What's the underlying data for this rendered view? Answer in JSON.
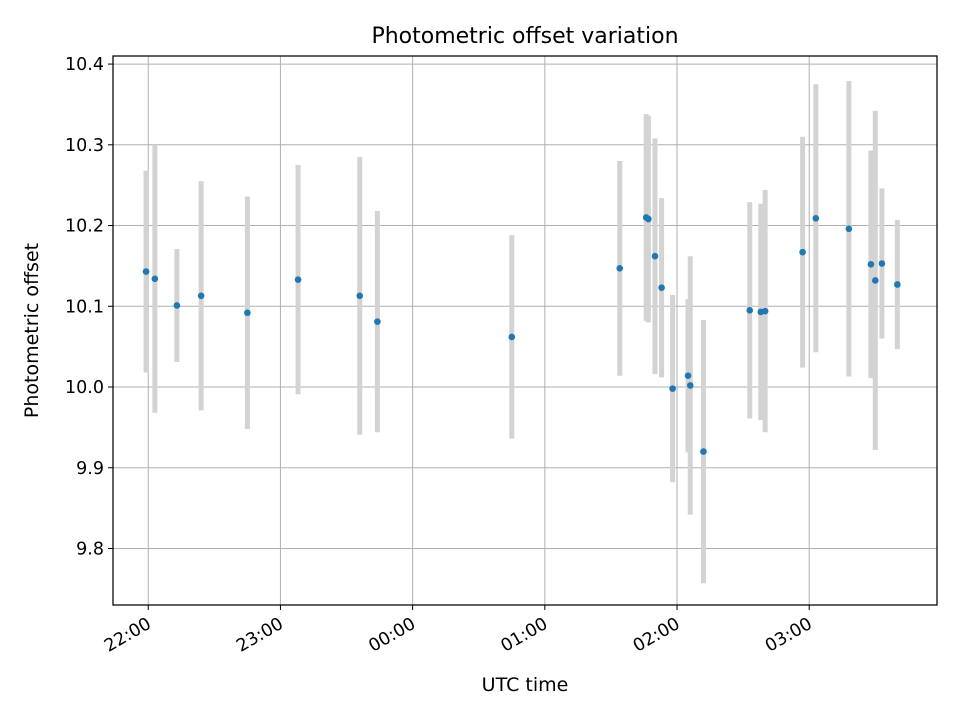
{
  "chart_data": {
    "type": "scatter",
    "title": "Photometric offset variation",
    "xlabel": "UTC time",
    "ylabel": "Photometric offset",
    "x_unit": "UTC",
    "x_range": [
      "21:44",
      "03:58"
    ],
    "ylim": [
      9.73,
      10.41
    ],
    "x_ticks": [
      "22:00",
      "23:00",
      "00:00",
      "01:00",
      "02:00",
      "03:00"
    ],
    "y_ticks": [
      9.8,
      9.9,
      10.0,
      10.1,
      10.2,
      10.3,
      10.4
    ],
    "y_tick_labels": [
      "9.8",
      "9.9",
      "10.0",
      "10.1",
      "10.2",
      "10.3",
      "10.4"
    ],
    "grid": true,
    "legend": "none",
    "colors": {
      "point": "#1f77b4",
      "errorbar": "#d3d3d3",
      "grid": "#b0b0b0"
    },
    "points": [
      {
        "t": "21:59",
        "y": 10.143,
        "err": 0.125
      },
      {
        "t": "22:03",
        "y": 10.134,
        "err": 0.166
      },
      {
        "t": "22:13",
        "y": 10.101,
        "err": 0.07
      },
      {
        "t": "22:24",
        "y": 10.113,
        "err": 0.142
      },
      {
        "t": "22:45",
        "y": 10.092,
        "err": 0.144
      },
      {
        "t": "23:08",
        "y": 10.133,
        "err": 0.142
      },
      {
        "t": "23:36",
        "y": 10.113,
        "err": 0.172
      },
      {
        "t": "23:44",
        "y": 10.081,
        "err": 0.137
      },
      {
        "t": "00:45",
        "y": 10.062,
        "err": 0.126
      },
      {
        "t": "01:34",
        "y": 10.147,
        "err": 0.133
      },
      {
        "t": "01:46",
        "y": 10.21,
        "err": 0.128
      },
      {
        "t": "01:47",
        "y": 10.208,
        "err": 0.128
      },
      {
        "t": "01:50",
        "y": 10.162,
        "err": 0.146
      },
      {
        "t": "01:53",
        "y": 10.123,
        "err": 0.111
      },
      {
        "t": "01:58",
        "y": 9.998,
        "err": 0.116
      },
      {
        "t": "02:05",
        "y": 10.014,
        "err": 0.095
      },
      {
        "t": "02:06",
        "y": 10.002,
        "err": 0.16
      },
      {
        "t": "02:12",
        "y": 9.92,
        "err": 0.163
      },
      {
        "t": "02:33",
        "y": 10.095,
        "err": 0.134
      },
      {
        "t": "02:38",
        "y": 10.093,
        "err": 0.134
      },
      {
        "t": "02:40",
        "y": 10.094,
        "err": 0.15
      },
      {
        "t": "02:57",
        "y": 10.167,
        "err": 0.143
      },
      {
        "t": "03:03",
        "y": 10.209,
        "err": 0.166
      },
      {
        "t": "03:18",
        "y": 10.196,
        "err": 0.183
      },
      {
        "t": "03:28",
        "y": 10.152,
        "err": 0.141
      },
      {
        "t": "03:30",
        "y": 10.132,
        "err": 0.21
      },
      {
        "t": "03:33",
        "y": 10.153,
        "err": 0.093
      },
      {
        "t": "03:40",
        "y": 10.127,
        "err": 0.08
      }
    ]
  }
}
